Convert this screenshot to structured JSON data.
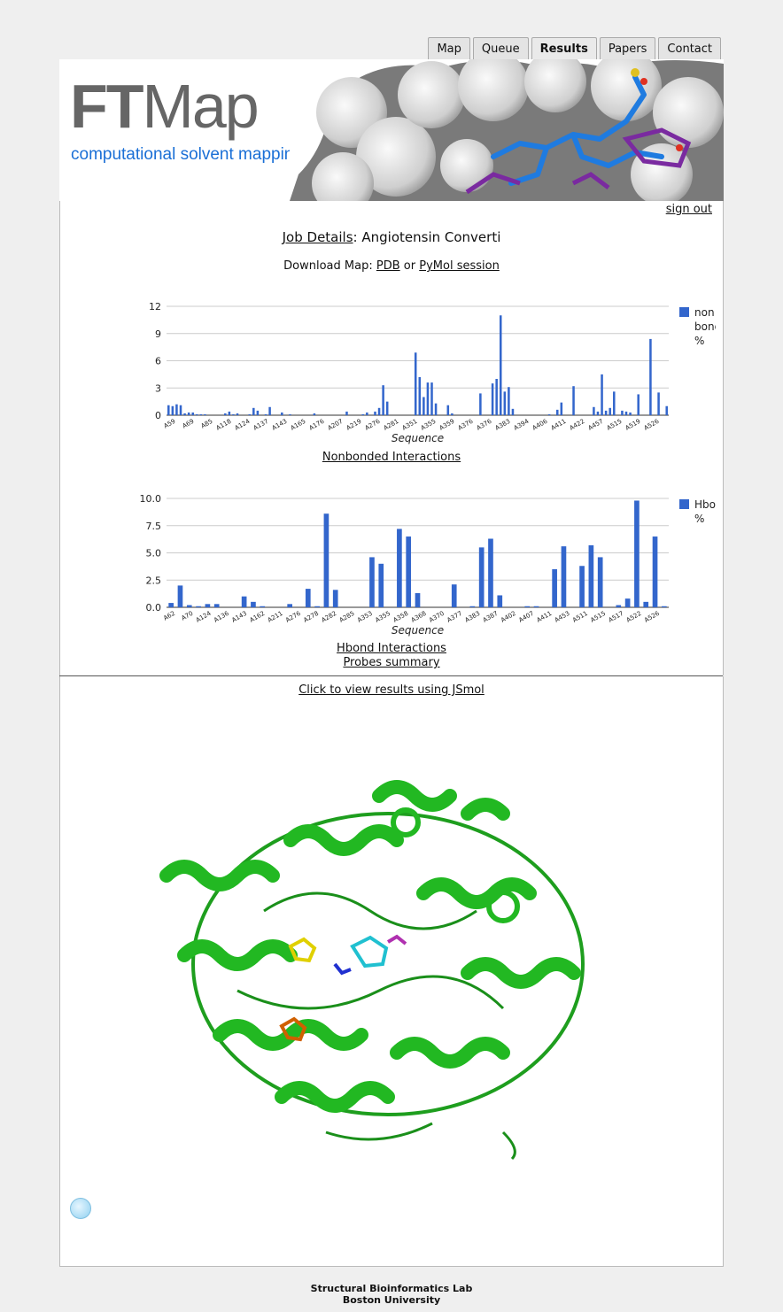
{
  "nav": {
    "tabs": [
      "Map",
      "Queue",
      "Results",
      "Papers",
      "Contact"
    ],
    "active": "Results"
  },
  "banner": {
    "logo_bold": "FT",
    "logo_light": "Map",
    "subtitle": "computational solvent mapping"
  },
  "header": {
    "signout": "sign out"
  },
  "job": {
    "link": "Job Details",
    "sep": ":",
    "name": "Angiotensin Converti"
  },
  "download": {
    "prefix": "Download Map:",
    "pdb": "PDB",
    "or": "or",
    "pymol": "PyMol session"
  },
  "links": {
    "nonbonded": "Nonbonded Interactions",
    "hbond": "Hbond Interactions",
    "probes": "Probes summary",
    "jsmol": "Click to view results using JSmol"
  },
  "footer": {
    "line1": "Structural Bioinformatics Lab",
    "line2": "Boston University"
  },
  "colors": {
    "bar": "#3366cc",
    "protein": "#22b822"
  },
  "chart_data": [
    {
      "type": "bar",
      "xlabel": "Sequence",
      "legend": "non bonded %",
      "legend_placement": "right",
      "yticks": [
        0,
        3,
        6,
        9,
        12
      ],
      "ylim": [
        0,
        12
      ],
      "tick_labels": [
        "A59",
        "A69",
        "A85",
        "A118",
        "A124",
        "A137",
        "A143",
        "A165",
        "A176",
        "A207",
        "A219",
        "A276",
        "A281",
        "A351",
        "A355",
        "A359",
        "A376",
        "A376",
        "A383",
        "A394",
        "A406",
        "A411",
        "A422",
        "A457",
        "A515",
        "A519",
        "A526"
      ],
      "values": [
        1.1,
        1.0,
        1.2,
        1.1,
        0.2,
        0.3,
        0.3,
        0.1,
        0.1,
        0.1,
        0,
        0,
        0,
        0,
        0.2,
        0.4,
        0.1,
        0.2,
        0,
        0,
        0.1,
        0.8,
        0.5,
        0,
        0.1,
        0.9,
        0,
        0,
        0.3,
        0,
        0.1,
        0,
        0,
        0,
        0,
        0,
        0.2,
        0,
        0,
        0,
        0,
        0,
        0,
        0,
        0.4,
        0,
        0,
        0,
        0.1,
        0.3,
        0,
        0.4,
        0.8,
        3.3,
        1.5,
        0,
        0,
        0,
        0,
        0,
        0,
        6.9,
        4.2,
        2.0,
        3.6,
        3.6,
        1.3,
        0,
        0,
        1.1,
        0.2,
        0,
        0,
        0,
        0,
        0,
        0,
        2.4,
        0,
        0,
        3.5,
        4.0,
        11.0,
        2.6,
        3.1,
        0.7,
        0,
        0,
        0,
        0,
        0,
        0,
        0,
        0,
        0.1,
        0,
        0.6,
        1.4,
        0,
        0,
        3.2,
        0,
        0,
        0,
        0,
        0.9,
        0.4,
        4.5,
        0.5,
        0.8,
        2.6,
        0,
        0.5,
        0.4,
        0.3,
        0,
        2.3,
        0,
        0,
        8.4,
        0,
        2.5,
        0,
        1.0
      ]
    },
    {
      "type": "bar",
      "xlabel": "Sequence",
      "legend": "Hbond %",
      "legend_placement": "right",
      "yticks": [
        0.0,
        2.5,
        5.0,
        7.5,
        10.0
      ],
      "ylim": [
        0,
        10
      ],
      "tick_labels": [
        "A62",
        "A70",
        "A124",
        "A136",
        "A143",
        "A162",
        "A211",
        "A276",
        "A278",
        "A282",
        "A285",
        "A353",
        "A355",
        "A358",
        "A368",
        "A370",
        "A377",
        "A383",
        "A387",
        "A402",
        "A407",
        "A411",
        "A453",
        "A511",
        "A515",
        "A517",
        "A522",
        "A526"
      ],
      "values": [
        0.4,
        2.0,
        0.2,
        0.1,
        0.3,
        0.3,
        0,
        0,
        1.0,
        0.5,
        0.1,
        0,
        0,
        0.3,
        0,
        1.7,
        0.1,
        8.6,
        1.6,
        0,
        0,
        0,
        4.6,
        4.0,
        0,
        7.2,
        6.5,
        1.3,
        0,
        0,
        0,
        2.1,
        0,
        0.1,
        5.5,
        6.3,
        1.1,
        0,
        0,
        0.1,
        0.1,
        0,
        3.5,
        5.6,
        0,
        3.8,
        5.7,
        4.6,
        0,
        0.2,
        0.8,
        9.8,
        0.5,
        6.5,
        0.1
      ]
    }
  ]
}
